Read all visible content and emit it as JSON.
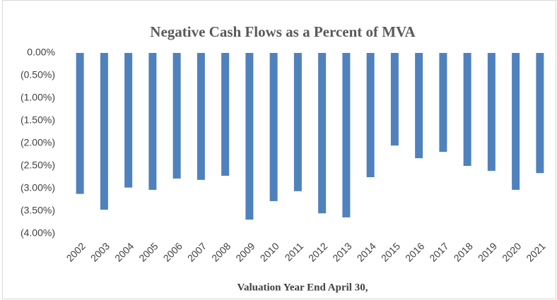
{
  "chart_data": {
    "type": "bar",
    "title": "Negative Cash Flows as a Percent of MVA",
    "x_label": "Valuation Year End April 30,",
    "categories": [
      "2002",
      "2003",
      "2004",
      "2005",
      "2006",
      "2007",
      "2008",
      "2009",
      "2010",
      "2011",
      "2012",
      "2013",
      "2014",
      "2015",
      "2016",
      "2017",
      "2018",
      "2019",
      "2020",
      "2021"
    ],
    "values": [
      -3.12,
      -3.47,
      -2.98,
      -3.03,
      -2.78,
      -2.81,
      -2.72,
      -3.69,
      -3.28,
      -3.06,
      -3.55,
      -3.64,
      -2.75,
      -2.05,
      -2.33,
      -2.19,
      -2.5,
      -2.61,
      -3.03,
      -2.66
    ],
    "color": "#4f81bd",
    "ylim": [
      -4,
      0
    ],
    "yticks": [
      {
        "value": 0,
        "label": "0.00%"
      },
      {
        "value": -0.5,
        "label": "(0.50%)"
      },
      {
        "value": -1,
        "label": "(1.00%)"
      },
      {
        "value": -1.5,
        "label": "(1.50%)"
      },
      {
        "value": -2,
        "label": "(2.00%)"
      },
      {
        "value": -2.5,
        "label": "(2.50%)"
      },
      {
        "value": -3,
        "label": "(3.00%)"
      },
      {
        "value": -3.5,
        "label": "(3.50%)"
      },
      {
        "value": -4,
        "label": "(4.00%)"
      }
    ],
    "grid": false
  }
}
